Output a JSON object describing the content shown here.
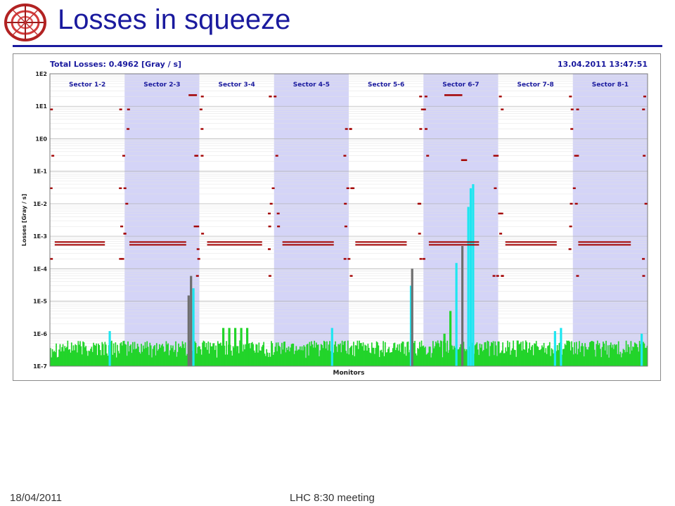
{
  "slide": {
    "title": "Losses in squeeze",
    "footer_date": "18/04/2011",
    "footer_center": "LHC 8:30 meeting"
  },
  "colors": {
    "title": "#1a1a9e",
    "sector_shade": "#d4d4f7",
    "threshold_red": "#a30000",
    "green_bars": "#22d42a",
    "cyan_bars": "#1ee6f0",
    "grey_bars": "#6e6e6e",
    "chart_header_text": "#1a1a9e"
  },
  "chart_data": {
    "type": "bar",
    "header_left": "Total Losses: 0.4962 [Gray / s]",
    "header_right": "13.04.2011  13:47:51",
    "xlabel": "Monitors",
    "ylabel": "Losses [Gray / s]",
    "yscale": "log",
    "ylim": [
      1e-07,
      100
    ],
    "yticks": [
      "1E-7",
      "1E-6",
      "1E-5",
      "1E-4",
      "1E-3",
      "1E-2",
      "1E-1",
      "1E0",
      "1E1",
      "1E2"
    ],
    "xlim": [
      0,
      1000
    ],
    "sectors": [
      {
        "name": "Sector 1-2",
        "start": 0,
        "end": 125,
        "shaded": false
      },
      {
        "name": "Sector 2-3",
        "start": 125,
        "end": 250,
        "shaded": true
      },
      {
        "name": "Sector 3-4",
        "start": 250,
        "end": 375,
        "shaded": false
      },
      {
        "name": "Sector 4-5",
        "start": 375,
        "end": 500,
        "shaded": true
      },
      {
        "name": "Sector 5-6",
        "start": 500,
        "end": 625,
        "shaded": false
      },
      {
        "name": "Sector 6-7",
        "start": 625,
        "end": 750,
        "shaded": true
      },
      {
        "name": "Sector 7-8",
        "start": 750,
        "end": 875,
        "shaded": false
      },
      {
        "name": "Sector 8-1",
        "start": 875,
        "end": 1000,
        "shaded": true
      }
    ],
    "baseline_loss": 4e-07,
    "series": [
      {
        "name": "",
        "role": "threshold",
        "segments": [
          {
            "x0": 8,
            "x1": 92,
            "y": 0.0006
          },
          {
            "x0": 133,
            "x1": 228,
            "y": 0.0006
          },
          {
            "x0": 263,
            "x1": 355,
            "y": 0.0006
          },
          {
            "x0": 389,
            "x1": 475,
            "y": 0.0006
          },
          {
            "x0": 511,
            "x1": 597,
            "y": 0.0006
          },
          {
            "x0": 634,
            "x1": 718,
            "y": 0.0006
          },
          {
            "x0": 762,
            "x1": 848,
            "y": 0.0006
          },
          {
            "x0": 884,
            "x1": 972,
            "y": 0.0006
          }
        ],
        "flat_levels": [
          {
            "x0": 232,
            "x1": 246,
            "y": 22.0
          },
          {
            "x0": 660,
            "x1": 690,
            "y": 22.0
          },
          {
            "x0": 688,
            "x1": 698,
            "y": 0.22
          }
        ]
      },
      {
        "name": "",
        "role": "loss_peaks",
        "peaks": [
          {
            "x": 100,
            "y": 1.2e-06,
            "color": "cyan"
          },
          {
            "x": 232,
            "y": 1.5e-05,
            "color": "grey"
          },
          {
            "x": 236,
            "y": 6e-05,
            "color": "grey"
          },
          {
            "x": 240,
            "y": 2.5e-05,
            "color": "cyan"
          },
          {
            "x": 290,
            "y": 1.5e-06,
            "color": "green"
          },
          {
            "x": 300,
            "y": 1.5e-06,
            "color": "green"
          },
          {
            "x": 310,
            "y": 1.5e-06,
            "color": "green"
          },
          {
            "x": 320,
            "y": 1.5e-06,
            "color": "green"
          },
          {
            "x": 330,
            "y": 1.5e-06,
            "color": "green"
          },
          {
            "x": 472,
            "y": 1.5e-06,
            "color": "cyan"
          },
          {
            "x": 604,
            "y": 3e-05,
            "color": "cyan"
          },
          {
            "x": 606,
            "y": 0.0001,
            "color": "grey"
          },
          {
            "x": 660,
            "y": 1e-06,
            "color": "green"
          },
          {
            "x": 670,
            "y": 5e-06,
            "color": "green"
          },
          {
            "x": 680,
            "y": 0.00015,
            "color": "cyan"
          },
          {
            "x": 690,
            "y": 0.0005,
            "color": "grey"
          },
          {
            "x": 700,
            "y": 0.008,
            "color": "cyan"
          },
          {
            "x": 704,
            "y": 0.03,
            "color": "cyan"
          },
          {
            "x": 708,
            "y": 0.04,
            "color": "cyan"
          },
          {
            "x": 845,
            "y": 1.2e-06,
            "color": "cyan"
          },
          {
            "x": 855,
            "y": 1.5e-06,
            "color": "cyan"
          },
          {
            "x": 990,
            "y": 1e-06,
            "color": "cyan"
          }
        ]
      }
    ]
  }
}
